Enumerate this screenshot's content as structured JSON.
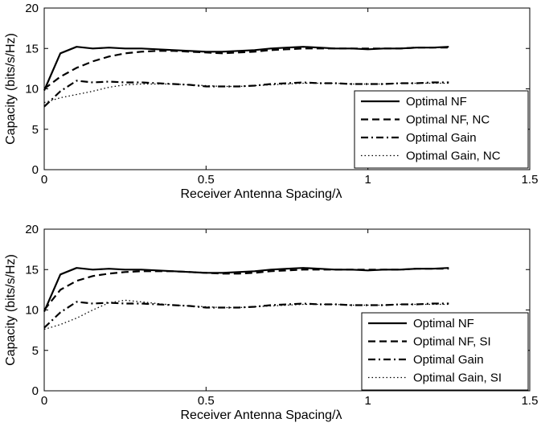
{
  "chart_data": [
    {
      "type": "line",
      "title": "",
      "xlabel": "Receiver Antenna Spacing/λ",
      "ylabel": "Capacity (bits/s/Hz)",
      "xlim": [
        0,
        1.5
      ],
      "ylim": [
        0,
        20
      ],
      "xticks": [
        "0",
        "0.5",
        "1",
        "1.5"
      ],
      "yticks": [
        "0",
        "5",
        "10",
        "15",
        "20"
      ],
      "grid": false,
      "legend_position": "lower-right",
      "x": [
        0,
        0.05,
        0.1,
        0.15,
        0.2,
        0.25,
        0.3,
        0.35,
        0.4,
        0.45,
        0.5,
        0.55,
        0.6,
        0.65,
        0.7,
        0.75,
        0.8,
        0.85,
        0.9,
        0.95,
        1.0,
        1.05,
        1.1,
        1.15,
        1.2,
        1.25
      ],
      "series": [
        {
          "name": "Optimal NF",
          "style": "solid",
          "values": [
            9.8,
            14.4,
            15.2,
            15.0,
            15.1,
            15.0,
            15.0,
            14.9,
            14.8,
            14.7,
            14.6,
            14.6,
            14.7,
            14.8,
            15.0,
            15.1,
            15.2,
            15.1,
            15.0,
            15.0,
            14.9,
            15.0,
            15.0,
            15.1,
            15.1,
            15.2
          ]
        },
        {
          "name": "Optimal NF, NC",
          "style": "dashed",
          "values": [
            10.0,
            11.5,
            12.6,
            13.4,
            14.0,
            14.4,
            14.6,
            14.7,
            14.7,
            14.6,
            14.5,
            14.4,
            14.5,
            14.6,
            14.8,
            14.9,
            15.0,
            15.0,
            15.0,
            15.0,
            15.0,
            15.0,
            15.0,
            15.1,
            15.1,
            15.1
          ]
        },
        {
          "name": "Optimal Gain",
          "style": "dashdot",
          "values": [
            7.8,
            9.7,
            11.0,
            10.8,
            10.9,
            10.8,
            10.8,
            10.7,
            10.6,
            10.5,
            10.3,
            10.3,
            10.3,
            10.4,
            10.6,
            10.7,
            10.8,
            10.7,
            10.7,
            10.6,
            10.6,
            10.6,
            10.7,
            10.7,
            10.8,
            10.8
          ]
        },
        {
          "name": "Optimal Gain, NC",
          "style": "dotted",
          "values": [
            8.3,
            8.9,
            9.3,
            9.7,
            10.2,
            10.5,
            10.6,
            10.6,
            10.6,
            10.5,
            10.4,
            10.3,
            10.3,
            10.4,
            10.5,
            10.6,
            10.7,
            10.7,
            10.7,
            10.6,
            10.6,
            10.6,
            10.7,
            10.7,
            10.7,
            10.7
          ]
        }
      ]
    },
    {
      "type": "line",
      "title": "",
      "xlabel": "Receiver Antenna Spacing/λ",
      "ylabel": "Capacity (bits/s/Hz)",
      "xlim": [
        0,
        1.5
      ],
      "ylim": [
        0,
        20
      ],
      "xticks": [
        "0",
        "0.5",
        "1",
        "1.5"
      ],
      "yticks": [
        "0",
        "5",
        "10",
        "15",
        "20"
      ],
      "grid": false,
      "legend_position": "lower-right",
      "x": [
        0,
        0.05,
        0.1,
        0.15,
        0.2,
        0.25,
        0.3,
        0.35,
        0.4,
        0.45,
        0.5,
        0.55,
        0.6,
        0.65,
        0.7,
        0.75,
        0.8,
        0.85,
        0.9,
        0.95,
        1.0,
        1.05,
        1.1,
        1.15,
        1.2,
        1.25
      ],
      "series": [
        {
          "name": "Optimal NF",
          "style": "solid",
          "values": [
            9.8,
            14.4,
            15.2,
            15.0,
            15.1,
            15.0,
            15.0,
            14.9,
            14.8,
            14.7,
            14.6,
            14.6,
            14.7,
            14.8,
            15.0,
            15.1,
            15.2,
            15.1,
            15.0,
            15.0,
            14.9,
            15.0,
            15.0,
            15.1,
            15.1,
            15.2
          ]
        },
        {
          "name": "Optimal NF, SI",
          "style": "dashed",
          "values": [
            10.0,
            12.5,
            13.6,
            14.2,
            14.5,
            14.7,
            14.8,
            14.8,
            14.8,
            14.7,
            14.6,
            14.5,
            14.5,
            14.6,
            14.8,
            14.9,
            15.0,
            15.0,
            15.0,
            15.0,
            15.0,
            15.0,
            15.0,
            15.1,
            15.1,
            15.1
          ]
        },
        {
          "name": "Optimal Gain",
          "style": "dashdot",
          "values": [
            7.8,
            9.7,
            11.0,
            10.8,
            10.9,
            10.8,
            10.8,
            10.7,
            10.6,
            10.5,
            10.3,
            10.3,
            10.3,
            10.4,
            10.6,
            10.7,
            10.8,
            10.7,
            10.7,
            10.6,
            10.6,
            10.6,
            10.7,
            10.7,
            10.8,
            10.8
          ]
        },
        {
          "name": "Optimal Gain, SI",
          "style": "dotted",
          "values": [
            7.6,
            8.2,
            9.0,
            10.0,
            10.9,
            11.2,
            11.0,
            10.8,
            10.6,
            10.5,
            10.4,
            10.3,
            10.3,
            10.4,
            10.5,
            10.6,
            10.7,
            10.7,
            10.7,
            10.6,
            10.6,
            10.6,
            10.7,
            10.7,
            10.7,
            10.7
          ]
        }
      ]
    }
  ]
}
